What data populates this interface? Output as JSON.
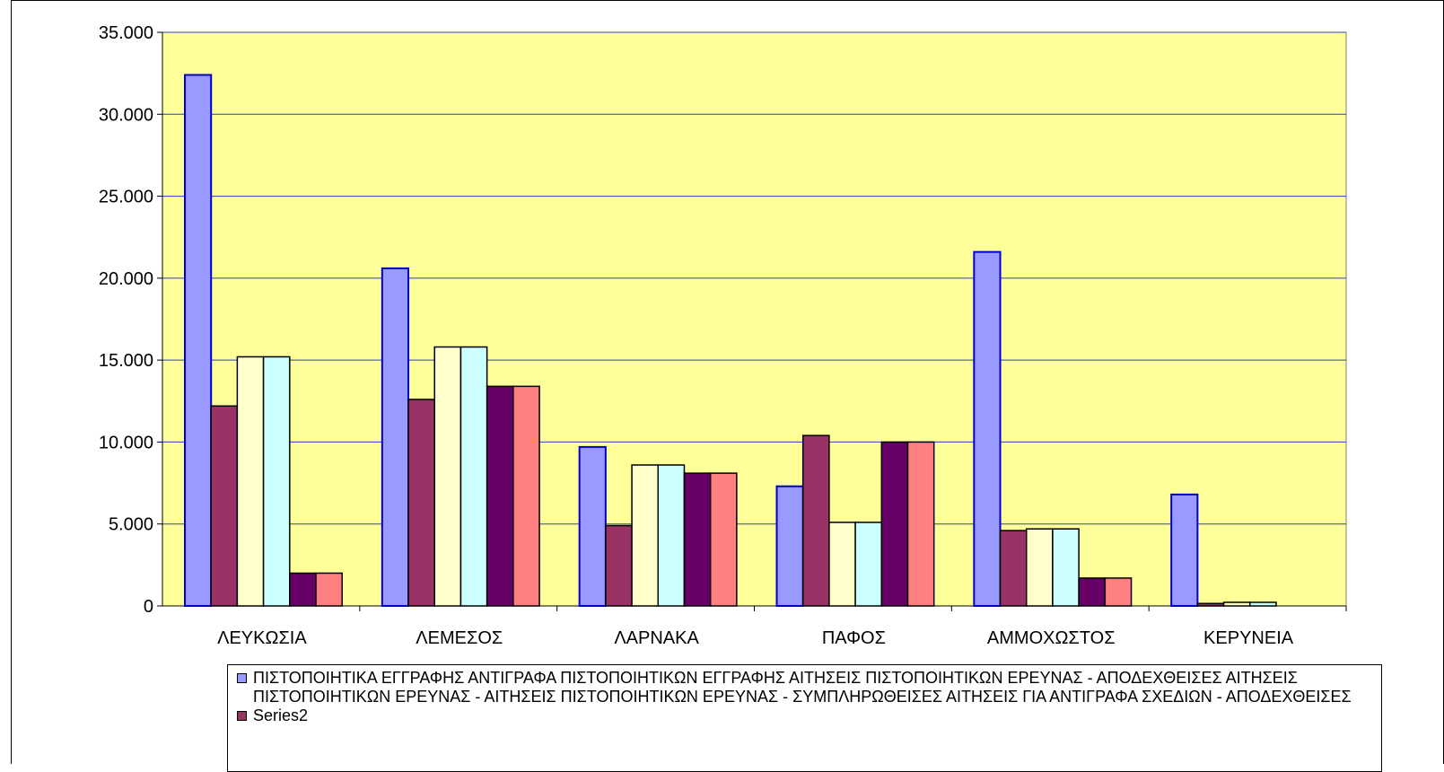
{
  "chart_data": {
    "type": "bar",
    "title": "",
    "xlabel": "",
    "ylabel": "",
    "ylim": [
      0,
      35000
    ],
    "yticks": [
      0,
      5000,
      10000,
      15000,
      20000,
      25000,
      30000,
      35000
    ],
    "ytick_labels": [
      "0",
      "5.000",
      "10.000",
      "15.000",
      "20.000",
      "25.000",
      "30.000",
      "35.000"
    ],
    "grid": true,
    "legend_position": "bottom",
    "plot_background": "#ffff99",
    "categories": [
      "ΛΕΥΚΩΣΙΑ",
      "ΛΕΜΕΣΟΣ",
      "ΛΑΡΝΑΚΑ",
      "ΠΑΦΟΣ",
      "ΑΜΜΟΧΩΣΤΟΣ",
      "ΚΕΡΥΝΕΙΑ"
    ],
    "series": [
      {
        "name": "ΠΙΣΤΟΠΟΙΗΤΙΚΑ ΕΓΓΡΑΦΗΣ ΑΝΤΙΓΡΑΦΑ ΠΙΣΤΟΠΟΙΗΤΙΚΩΝ ΕΓΓΡΑΦΗΣ ΑΙΤΗΣΕΙΣ ΠΙΣΤΟΠΟΙΗΤΙΚΩΝ ΕΡΕΥΝΑΣ - ΑΠΟΔΕΧΘΕΙΣΕΣ ΑΙΤΗΣΕΙΣ ΠΙΣΤΟΠΟΙΗΤΙΚΩΝ ΕΡΕΥΝΑΣ - ΑΙΤΗΣΕΙΣ ΠΙΣΤΟΠΟΙΗΤΙΚΩΝ ΕΡΕΥΝΑΣ - ΣΥΜΠΛΗΡΩΘΕΙΣΕΣ ΑΙΤΗΣΕΙΣ ΓΙΑ ΑΝΤΙΓΡΑΦΑ ΣΧΕΔΙΩΝ - ΑΠΟΔΕΧΘΕΙΣΕΣ",
        "color": "#9999ff",
        "border": "#0000cc",
        "values": [
          32400,
          20600,
          9700,
          7300,
          21600,
          6800
        ]
      },
      {
        "name": "Series2",
        "color": "#993366",
        "border": "#000000",
        "values": [
          12200,
          12600,
          4900,
          10400,
          4600,
          150
        ]
      },
      {
        "color": "#ffffcc",
        "border": "#000000",
        "values": [
          15200,
          15800,
          8600,
          5100,
          4700,
          220
        ]
      },
      {
        "color": "#ccffff",
        "border": "#000000",
        "values": [
          15200,
          15800,
          8600,
          5100,
          4700,
          220
        ]
      },
      {
        "color": "#660066",
        "border": "#000000",
        "values": [
          2000,
          13400,
          8100,
          10000,
          1700,
          0
        ]
      },
      {
        "color": "#ff8080",
        "border": "#000000",
        "values": [
          2000,
          13400,
          8100,
          10000,
          1700,
          0
        ]
      }
    ]
  }
}
